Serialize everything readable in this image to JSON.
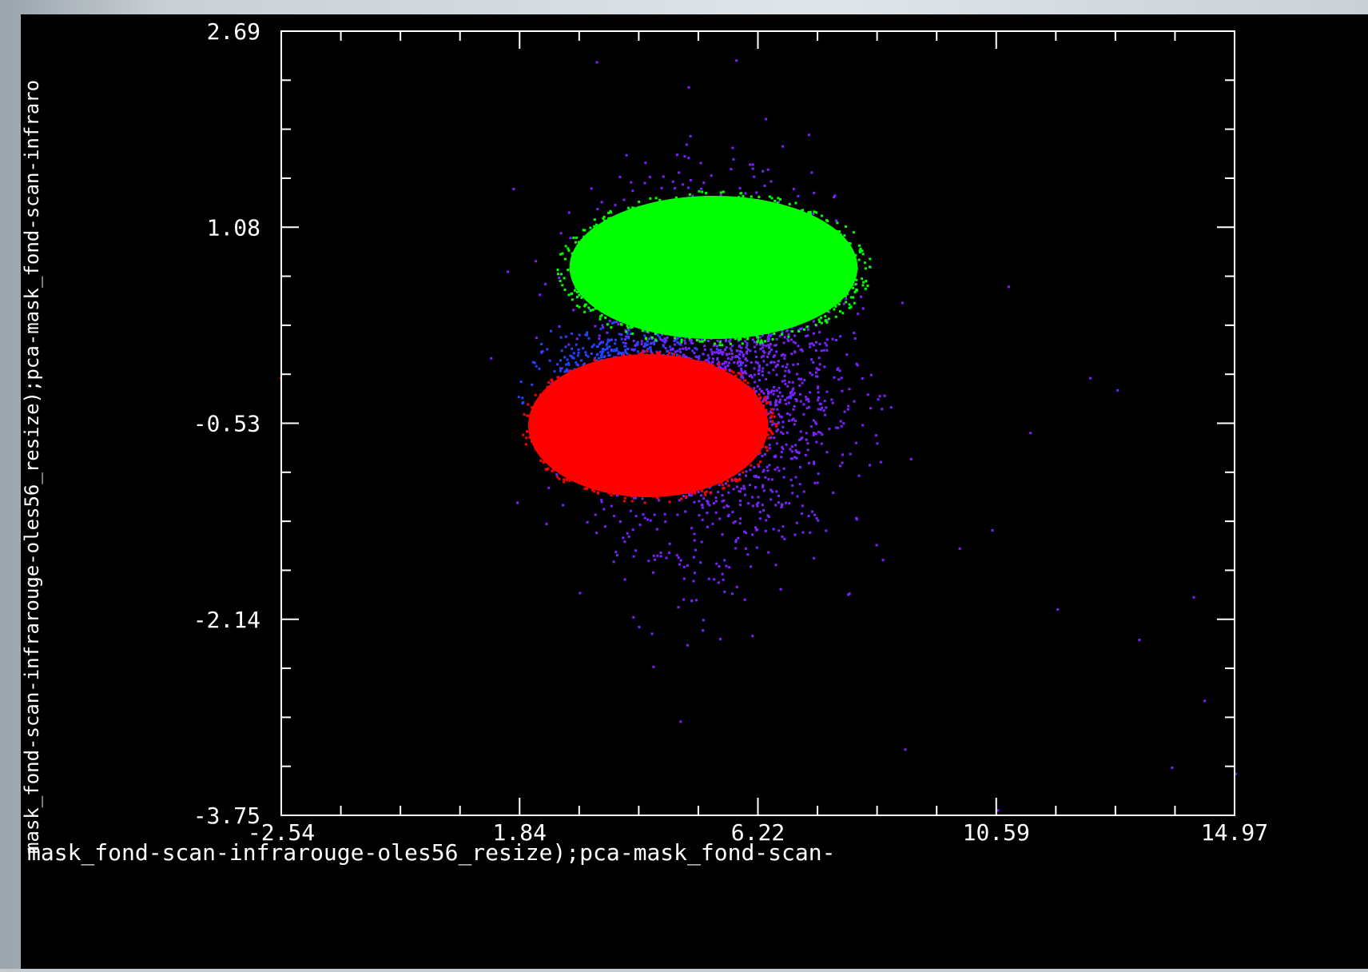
{
  "chart_data": {
    "type": "scatter",
    "title": "",
    "xlabel": "mask_fond-scan-infrarouge-oles56_resize);pca-mask_fond-scan-",
    "ylabel": "mask_fond-scan-infrarouge-oles56_resize);pca-mask_fond-scan-infraro",
    "xlim": [
      -2.54,
      14.97
    ],
    "ylim": [
      -3.75,
      2.69
    ],
    "x_ticks": [
      "-2.54",
      "1.84",
      "6.22",
      "10.59",
      "14.97"
    ],
    "y_ticks": [
      "2.69",
      "1.08",
      "-0.53",
      "-2.14",
      "-3.75"
    ],
    "background": "#000000",
    "axis_color": "#ffffff",
    "series": [
      {
        "color": "#7a22ff",
        "shape": "scattered halo",
        "center": [
          5.4,
          -0.1
        ],
        "spread": [
          2.6,
          1.7
        ],
        "count": 2600
      },
      {
        "color": "#2244ff",
        "shape": "dense band between clusters",
        "center": [
          3.8,
          -0.15
        ],
        "spread": [
          1.4,
          0.35
        ],
        "count": 900
      },
      {
        "color": "#00ff00",
        "shape": "dense ellipse",
        "center": [
          5.4,
          0.75
        ],
        "radii": [
          2.7,
          0.6
        ]
      },
      {
        "color": "#ff0000",
        "shape": "dense ellipse",
        "center": [
          4.2,
          -0.55
        ],
        "radii": [
          2.25,
          0.6
        ]
      }
    ],
    "outliers": [
      [
        10.5,
        -1.4
      ],
      [
        11.2,
        -0.6
      ],
      [
        12.8,
        -0.25
      ],
      [
        13.2,
        -2.3
      ],
      [
        14.4,
        -2.8
      ],
      [
        13.8,
        -3.35
      ],
      [
        11.7,
        -2.05
      ],
      [
        9.9,
        -1.55
      ],
      [
        12.3,
        -0.15
      ],
      [
        10.8,
        0.6
      ],
      [
        8.9,
        -3.2
      ],
      [
        14.2,
        -1.95
      ],
      [
        -2.6,
        -0.15
      ],
      [
        10.6,
        -3.7
      ],
      [
        15.0,
        -3.4
      ]
    ],
    "grid": false
  }
}
